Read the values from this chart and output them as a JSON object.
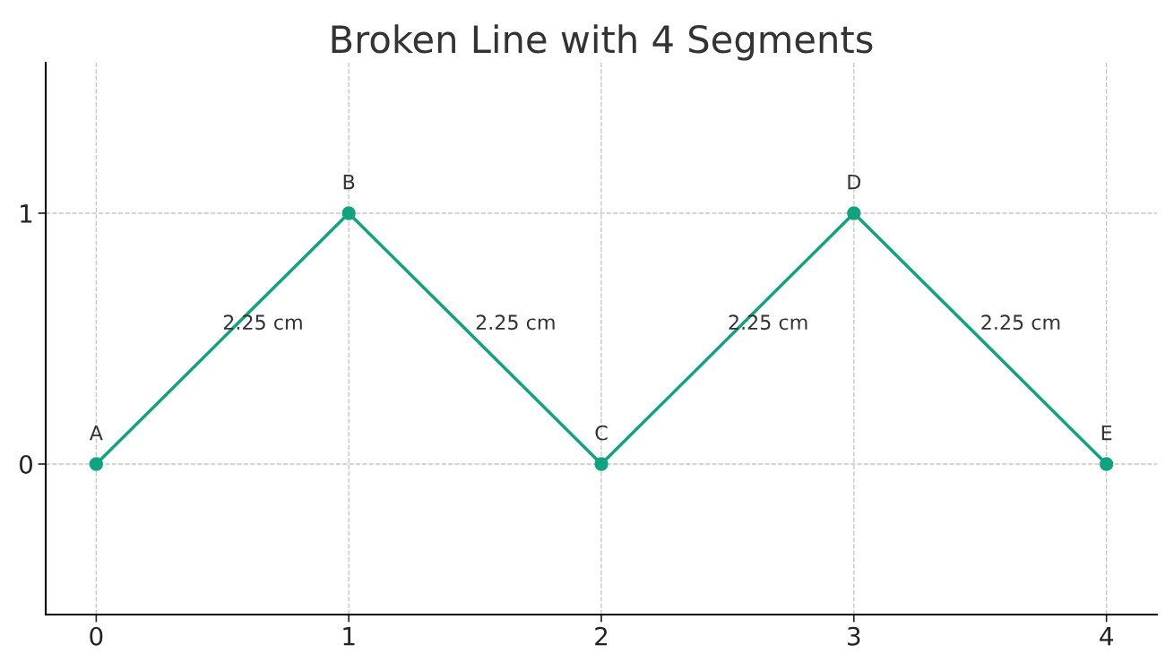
{
  "chart_data": {
    "type": "line",
    "title": "Broken Line with 4 Segments",
    "x": [
      0,
      1,
      2,
      3,
      4
    ],
    "series": [
      {
        "color": "#10a37f",
        "values": [
          0,
          1,
          0,
          1,
          0
        ]
      }
    ],
    "xlim": [
      -0.2,
      4.2
    ],
    "ylim": [
      -0.6,
      1.6
    ],
    "xticks": [
      0,
      1,
      2,
      3,
      4
    ],
    "yticks": [
      0,
      1
    ],
    "grid": true,
    "marker": "circle",
    "line_style": "solid",
    "annotations": [
      {
        "text": "A",
        "x": 0,
        "y": 0
      },
      {
        "text": "B",
        "x": 1,
        "y": 1
      },
      {
        "text": "C",
        "x": 2,
        "y": 0
      },
      {
        "text": "D",
        "x": 3,
        "y": 1
      },
      {
        "text": "E",
        "x": 4,
        "y": 0
      },
      {
        "text": "2.25 cm",
        "x": 0.5,
        "y": 0.5
      },
      {
        "text": "2.25 cm",
        "x": 1.5,
        "y": 0.5
      },
      {
        "text": "2.25 cm",
        "x": 2.5,
        "y": 0.5
      },
      {
        "text": "2.25 cm",
        "x": 3.5,
        "y": 0.5
      }
    ]
  }
}
